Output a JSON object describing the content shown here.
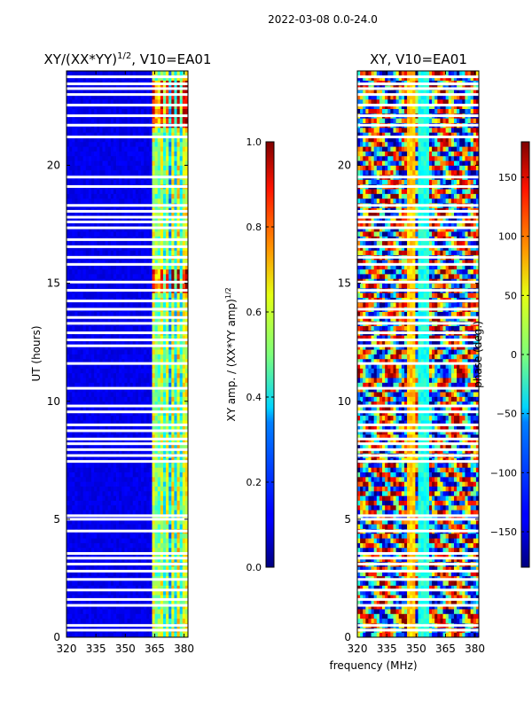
{
  "suptitle": "2022-03-08 0.0-24.0",
  "chart_data": [
    {
      "type": "heatmap",
      "title_main": "XY/(XX*YY)",
      "title_sup": "1/2",
      "title_tail": ", V10=EA01",
      "xlabel": "",
      "ylabel": "UT (hours)",
      "xlim": [
        320,
        382
      ],
      "ylim": [
        0,
        24
      ],
      "xticks": [
        "320",
        "335",
        "350",
        "365",
        "380"
      ],
      "xtick_values": [
        320,
        335,
        350,
        365,
        380
      ],
      "yticks": [
        "0",
        "5",
        "10",
        "15",
        "20"
      ],
      "ytick_values": [
        0,
        5,
        10,
        15,
        20
      ],
      "bright_channels_mhz": [
        364,
        366.5,
        369,
        371,
        374.5,
        377,
        379.5,
        381
      ],
      "colorbar": {
        "label": "XY amp. / (XX*YY amp)",
        "label_sup": "1/2",
        "range": [
          0.0,
          1.0
        ],
        "ticks": [
          "0.0",
          "0.2",
          "0.4",
          "0.6",
          "0.8",
          "1.0"
        ],
        "tick_values": [
          0.0,
          0.2,
          0.4,
          0.6,
          0.8,
          1.0
        ]
      }
    },
    {
      "type": "heatmap",
      "title_main": "XY, V10=EA01",
      "title_sup": "",
      "title_tail": "",
      "xlabel": "frequency (MHz)",
      "ylabel": "",
      "xlim": [
        320,
        382
      ],
      "ylim": [
        0,
        24
      ],
      "xticks": [
        "320",
        "335",
        "350",
        "365",
        "380"
      ],
      "xtick_values": [
        320,
        335,
        350,
        365,
        380
      ],
      "yticks": [
        "0",
        "5",
        "10",
        "15",
        "20"
      ],
      "ytick_values": [
        0,
        5,
        10,
        15,
        20
      ],
      "colorbar": {
        "label": "phase (deg.)",
        "label_sup": "",
        "range": [
          -180,
          180
        ],
        "ticks": [
          "−150",
          "−100",
          "−50",
          "0",
          "50",
          "100",
          "150"
        ],
        "tick_values": [
          -150,
          -100,
          -50,
          0,
          50,
          100,
          150
        ]
      }
    }
  ],
  "flagged_gaps_ut_hours": [
    0.3,
    0.5,
    1.35,
    1.6,
    2.0,
    2.45,
    2.8,
    3.1,
    3.35,
    3.55,
    4.5,
    5.0,
    5.15,
    7.45,
    7.7,
    7.95,
    8.2,
    8.4,
    8.75,
    9.0,
    9.55,
    9.8,
    10.55,
    11.6,
    12.35,
    12.6,
    12.9,
    13.3,
    13.55,
    13.9,
    14.25,
    14.7,
    15.05,
    15.8,
    16.1,
    16.55,
    16.85,
    17.35,
    17.6,
    17.8,
    18.05,
    18.3,
    19.1,
    19.5,
    21.2,
    21.7,
    22.1,
    22.55,
    23.0,
    23.25,
    23.45,
    23.75
  ]
}
